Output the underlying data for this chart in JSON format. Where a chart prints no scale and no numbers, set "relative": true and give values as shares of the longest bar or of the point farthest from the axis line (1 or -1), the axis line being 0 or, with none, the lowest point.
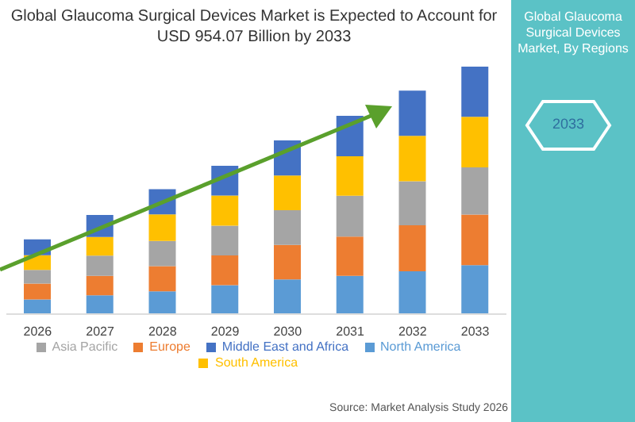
{
  "chart_data": {
    "type": "bar",
    "title": "Global Glaucoma Surgical Devices Market is Expected to Account for USD 954.07 Billion by 2033",
    "categories": [
      "2026",
      "2027",
      "2028",
      "2029",
      "2030",
      "2031",
      "2032",
      "2033"
    ],
    "stacked": true,
    "relative": true,
    "legend": "bottom",
    "series": [
      {
        "name": "North America",
        "color": "#5b9bd5",
        "values": [
          0.059,
          0.076,
          0.092,
          0.117,
          0.14,
          0.155,
          0.173,
          0.198
        ]
      },
      {
        "name": "Europe",
        "color": "#ed7d31",
        "values": [
          0.064,
          0.079,
          0.102,
          0.12,
          0.14,
          0.158,
          0.186,
          0.204
        ]
      },
      {
        "name": "Asia Pacific",
        "color": "#a5a5a5",
        "values": [
          0.056,
          0.081,
          0.102,
          0.12,
          0.14,
          0.165,
          0.178,
          0.191
        ]
      },
      {
        "name": "South America",
        "color": "#ffc000",
        "values": [
          0.059,
          0.076,
          0.107,
          0.122,
          0.14,
          0.16,
          0.183,
          0.204
        ]
      },
      {
        "name": "Middle East and Africa",
        "color": "#4472c4",
        "values": [
          0.064,
          0.089,
          0.102,
          0.12,
          0.142,
          0.163,
          0.183,
          0.203
        ]
      }
    ],
    "annotations": [
      "Global Glaucoma Surgical Devices Market, By Regions",
      "2033",
      "Source: Market Analysis Study 2026"
    ]
  }
}
